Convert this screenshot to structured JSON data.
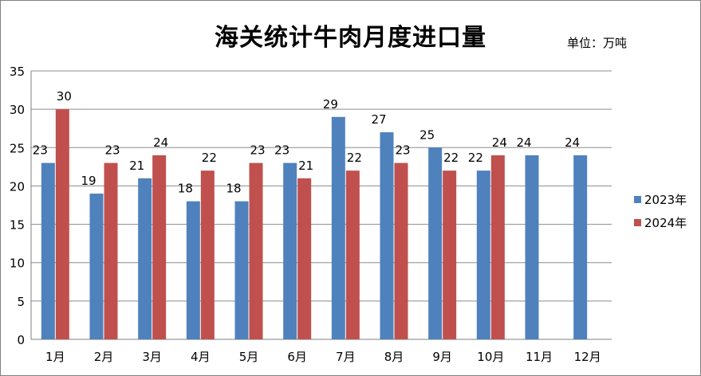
{
  "chart_data": {
    "type": "bar",
    "title": "海关统计牛肉月度进口量",
    "unit_label": "单位：万吨",
    "categories": [
      "1月",
      "2月",
      "3月",
      "4月",
      "5月",
      "6月",
      "7月",
      "8月",
      "9月",
      "10月",
      "11月",
      "12月"
    ],
    "ylim": [
      0,
      35
    ],
    "yticks": [
      0,
      5,
      10,
      15,
      20,
      25,
      30,
      35
    ],
    "grid": true,
    "legend_position": "right",
    "series": [
      {
        "name": "2023年",
        "color": "#4f81bd",
        "values": [
          23,
          19,
          21,
          18,
          18,
          23,
          29,
          27,
          25,
          22,
          24,
          24
        ]
      },
      {
        "name": "2024年",
        "color": "#c0504d",
        "values": [
          30,
          23,
          24,
          22,
          23,
          21,
          22,
          23,
          22,
          24,
          null,
          null
        ]
      }
    ]
  }
}
